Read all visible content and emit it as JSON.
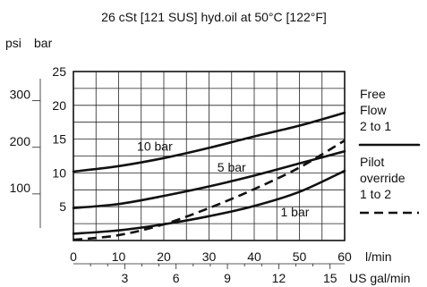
{
  "chart_data": {
    "type": "line",
    "title": "26 cSt [121 SUS] hyd.oil at 50°C [122°F]",
    "x": {
      "label": "l/min",
      "min": 0,
      "max": 60,
      "ticks": [
        0,
        10,
        20,
        30,
        40,
        50,
        60
      ]
    },
    "x2": {
      "label": "US gal/min",
      "ticks": [
        3,
        6,
        9,
        12,
        15
      ]
    },
    "y": {
      "label": "bar",
      "min": 0,
      "max": 25,
      "ticks": [
        5,
        10,
        15,
        20,
        25
      ]
    },
    "y2": {
      "label": "psi",
      "ticks": [
        100,
        200,
        300
      ]
    },
    "grid": true,
    "series": [
      {
        "name": "10 bar",
        "style": "solid",
        "points": [
          [
            0,
            10.2
          ],
          [
            10,
            11.0
          ],
          [
            20,
            12.2
          ],
          [
            30,
            13.7
          ],
          [
            40,
            15.4
          ],
          [
            50,
            17.0
          ],
          [
            60,
            18.9
          ]
        ]
      },
      {
        "name": "5 bar",
        "style": "solid",
        "points": [
          [
            0,
            4.8
          ],
          [
            10,
            5.4
          ],
          [
            20,
            6.6
          ],
          [
            30,
            8.0
          ],
          [
            40,
            9.6
          ],
          [
            50,
            11.4
          ],
          [
            60,
            13.2
          ]
        ]
      },
      {
        "name": "1 bar",
        "style": "solid",
        "points": [
          [
            0,
            1.0
          ],
          [
            10,
            1.5
          ],
          [
            20,
            2.4
          ],
          [
            30,
            3.6
          ],
          [
            40,
            5.1
          ],
          [
            50,
            7.2
          ],
          [
            60,
            10.3
          ]
        ]
      },
      {
        "name": "",
        "style": "dashed",
        "points": [
          [
            0,
            0.1
          ],
          [
            10,
            0.8
          ],
          [
            20,
            2.4
          ],
          [
            30,
            4.8
          ],
          [
            40,
            7.6
          ],
          [
            50,
            10.8
          ],
          [
            60,
            14.8
          ]
        ]
      }
    ],
    "labels": [
      {
        "text": "10 bar",
        "x": 18,
        "y": 13.3
      },
      {
        "text": "5 bar",
        "x": 35,
        "y": 10.2
      },
      {
        "text": "1 bar",
        "x": 49,
        "y": 3.6
      }
    ],
    "legend": {
      "placement": "right",
      "entries": [
        {
          "lines": [
            "Free",
            "Flow",
            "2 to 1"
          ],
          "style": "solid"
        },
        {
          "lines": [
            "Pilot",
            "override",
            "1 to 2"
          ],
          "style": "dashed"
        }
      ]
    }
  }
}
